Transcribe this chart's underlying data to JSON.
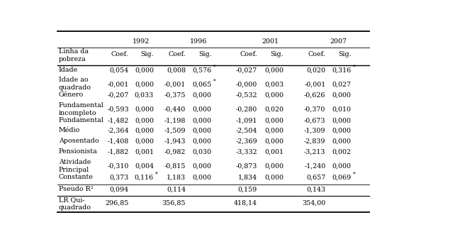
{
  "title_years": [
    "1992",
    "1996",
    "2001",
    "2007"
  ],
  "rows": [
    [
      "Idade",
      "0,054",
      "0,000",
      "0,008",
      "0,576*",
      "-0,027",
      "0,000",
      "0,020",
      "0,316*"
    ],
    [
      "Idade ao\nquadrado",
      "-0,001",
      "0,000",
      "-0,001",
      "0,065*",
      "-0,000",
      "0,003",
      "-0,001",
      "0,027"
    ],
    [
      "Gênero",
      "-0,207",
      "0,033",
      "-0,375",
      "0,000",
      "-0,532",
      "0,000",
      "-0,626",
      "0,000"
    ],
    [
      "Fundamental\nincompleto",
      "-0,593",
      "0,000",
      "-0,440",
      "0,000",
      "-0,280",
      "0,020",
      "-0,370",
      "0,010"
    ],
    [
      "Fundamental",
      "-1,482",
      "0,000",
      "-1,198",
      "0,000",
      "-1,091",
      "0,000",
      "-0,673",
      "0,000"
    ],
    [
      "Médio",
      "-2,364",
      "0,000",
      "-1,509",
      "0,000",
      "-2,504",
      "0,000",
      "-1,309",
      "0,000"
    ],
    [
      "Aposentado",
      "-1,408",
      "0,000",
      "-1,943",
      "0,000",
      "-2,369",
      "0,000",
      "-2,839",
      "0,000"
    ],
    [
      "Pensionista",
      "-1,882",
      "0,001",
      "-0,982",
      "0,030",
      "-3,332",
      "0,001",
      "-3,213",
      "0,002"
    ],
    [
      "Atividade\nPrincipal",
      "-0,310",
      "0,004",
      "-0,815",
      "0,000",
      "-0,873",
      "0,000",
      "-1,240",
      "0,000"
    ],
    [
      "Constante",
      "0,373",
      "0,116*",
      "1,183",
      "0,000",
      "1,834",
      "0,000",
      "0,657",
      "0,069*"
    ]
  ],
  "stat_rows": [
    [
      "Pseudo R²",
      "0,094",
      "0,114",
      "0,159",
      "0,143"
    ],
    [
      "LR Qui-\nquadrado",
      "296,85",
      "356,85",
      "418,14",
      "354,00"
    ]
  ],
  "font_size": 6.8,
  "fig_width": 6.49,
  "fig_height": 3.34
}
